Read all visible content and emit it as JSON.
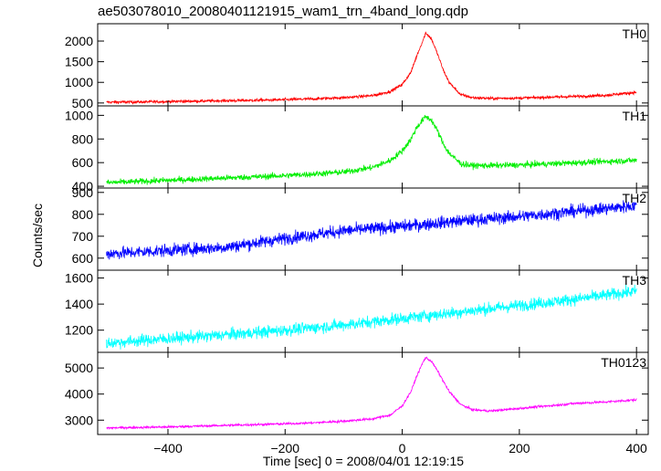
{
  "chart_data": {
    "type": "line",
    "title": "ae503078010_20080401121915_wam1_trn_4band_long.qdp",
    "xlabel": "Time [sec] 0 = 2008/04/01 12:19:15",
    "ylabel": "Counts/sec",
    "xlim": [
      -520,
      420
    ],
    "xticks": [
      -400,
      -200,
      0,
      200,
      400
    ],
    "xtick_labels": [
      "−400",
      "−200",
      "0",
      "200",
      "400"
    ],
    "grid": false,
    "panels": [
      {
        "name": "TH0",
        "color": "#ff0000",
        "ylim": [
          430,
          2420
        ],
        "yticks": [
          500,
          1000,
          1500,
          2000
        ],
        "noise": 35,
        "x": [
          -505,
          -450,
          -400,
          -350,
          -300,
          -250,
          -200,
          -150,
          -100,
          -50,
          -20,
          0,
          15,
          25,
          35,
          40,
          50,
          60,
          70,
          80,
          100,
          120,
          150,
          200,
          250,
          300,
          350,
          400
        ],
        "y": [
          520,
          525,
          535,
          545,
          555,
          565,
          580,
          600,
          630,
          680,
          780,
          950,
          1250,
          1650,
          2000,
          2200,
          2050,
          1700,
          1300,
          1000,
          700,
          630,
          610,
          620,
          640,
          660,
          690,
          760
        ]
      },
      {
        "name": "TH1",
        "color": "#00ee00",
        "ylim": [
          385,
          1080
        ],
        "yticks": [
          400,
          600,
          800,
          1000
        ],
        "noise": 25,
        "x": [
          -505,
          -450,
          -400,
          -350,
          -300,
          -250,
          -200,
          -150,
          -100,
          -50,
          -20,
          0,
          15,
          25,
          35,
          40,
          50,
          60,
          70,
          80,
          100,
          120,
          150,
          200,
          250,
          300,
          350,
          400
        ],
        "y": [
          430,
          440,
          450,
          460,
          470,
          480,
          490,
          505,
          520,
          560,
          620,
          700,
          800,
          900,
          960,
          990,
          960,
          870,
          760,
          680,
          590,
          575,
          575,
          580,
          590,
          600,
          610,
          620
        ]
      },
      {
        "name": "TH2",
        "color": "#0000ff",
        "ylim": [
          545,
          920
        ],
        "yticks": [
          600,
          700,
          800,
          900
        ],
        "noise": 28,
        "x": [
          -505,
          -400,
          -300,
          -200,
          -100,
          0,
          100,
          200,
          300,
          400
        ],
        "y": [
          620,
          635,
          650,
          690,
          725,
          745,
          770,
          790,
          815,
          840
        ]
      },
      {
        "name": "TH3",
        "color": "#00ffff",
        "ylim": [
          1030,
          1660
        ],
        "yticks": [
          1200,
          1400,
          1600
        ],
        "noise": 45,
        "x": [
          -505,
          -400,
          -300,
          -200,
          -100,
          0,
          100,
          200,
          300,
          400
        ],
        "y": [
          1100,
          1135,
          1165,
          1200,
          1240,
          1290,
          1340,
          1390,
          1440,
          1500
        ]
      },
      {
        "name": "TH0123",
        "color": "#ff00ff",
        "ylim": [
          2450,
          5600
        ],
        "yticks": [
          3000,
          4000,
          5000
        ],
        "noise": 45,
        "x": [
          -505,
          -450,
          -400,
          -350,
          -300,
          -250,
          -200,
          -150,
          -100,
          -50,
          -20,
          0,
          15,
          25,
          35,
          40,
          50,
          60,
          70,
          80,
          100,
          120,
          150,
          200,
          250,
          300,
          350,
          400
        ],
        "y": [
          2700,
          2720,
          2740,
          2770,
          2800,
          2830,
          2860,
          2900,
          2960,
          3050,
          3200,
          3550,
          4100,
          4700,
          5200,
          5400,
          5250,
          4900,
          4500,
          4100,
          3600,
          3400,
          3350,
          3450,
          3550,
          3650,
          3700,
          3780
        ]
      }
    ]
  }
}
